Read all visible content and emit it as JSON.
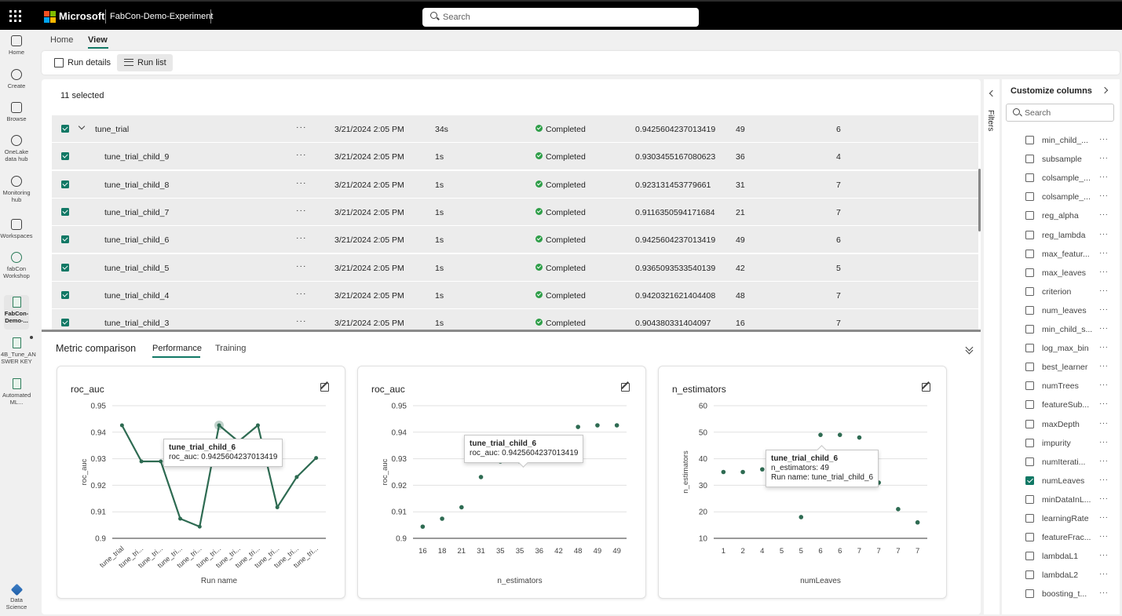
{
  "topbar": {
    "brand": "Microsoft",
    "app_name": "FabCon-Demo-Experiment",
    "search_placeholder": "Search"
  },
  "rail": [
    {
      "label": "Home",
      "icon": "home-icon"
    },
    {
      "label": "Create",
      "icon": "plus-circle-icon"
    },
    {
      "label": "Browse",
      "icon": "folder-icon"
    },
    {
      "label": "OneLake data hub",
      "icon": "onelake-icon"
    },
    {
      "label": "Monitoring hub",
      "icon": "monitor-icon"
    },
    {
      "label": "Workspaces",
      "icon": "workspaces-icon"
    },
    {
      "label": "fabCon Workshop",
      "icon": "workshop-icon"
    },
    {
      "label": "FabCon-Demo-...",
      "icon": "experiment-icon"
    },
    {
      "label": "4B_Tune_AN SWER KEY",
      "icon": "notebook-icon"
    },
    {
      "label": "Automated ML...",
      "icon": "notebook-icon"
    },
    {
      "label": "Data Science",
      "icon": "data-science-icon"
    }
  ],
  "nav": {
    "tabs": [
      "Home",
      "View"
    ],
    "active": "View"
  },
  "ribbon": {
    "run_details": "Run details",
    "run_list": "Run list"
  },
  "table": {
    "selected_label": "11 selected",
    "more": "···",
    "rows": [
      {
        "name": "tune_trial",
        "date": "3/21/2024 2:05 PM",
        "duration": "34s",
        "status": "Completed",
        "roc_auc": "0.9425604237013419",
        "n_estimators": "49",
        "num_leaves": "6",
        "parent": true
      },
      {
        "name": "tune_trial_child_9",
        "date": "3/21/2024 2:05 PM",
        "duration": "1s",
        "status": "Completed",
        "roc_auc": "0.9303455167080623",
        "n_estimators": "36",
        "num_leaves": "4"
      },
      {
        "name": "tune_trial_child_8",
        "date": "3/21/2024 2:05 PM",
        "duration": "1s",
        "status": "Completed",
        "roc_auc": "0.923131453779661",
        "n_estimators": "31",
        "num_leaves": "7"
      },
      {
        "name": "tune_trial_child_7",
        "date": "3/21/2024 2:05 PM",
        "duration": "1s",
        "status": "Completed",
        "roc_auc": "0.9116350594171684",
        "n_estimators": "21",
        "num_leaves": "7"
      },
      {
        "name": "tune_trial_child_6",
        "date": "3/21/2024 2:05 PM",
        "duration": "1s",
        "status": "Completed",
        "roc_auc": "0.9425604237013419",
        "n_estimators": "49",
        "num_leaves": "6"
      },
      {
        "name": "tune_trial_child_5",
        "date": "3/21/2024 2:05 PM",
        "duration": "1s",
        "status": "Completed",
        "roc_auc": "0.9365093533540139",
        "n_estimators": "42",
        "num_leaves": "5"
      },
      {
        "name": "tune_trial_child_4",
        "date": "3/21/2024 2:05 PM",
        "duration": "1s",
        "status": "Completed",
        "roc_auc": "0.9420321621404408",
        "n_estimators": "48",
        "num_leaves": "7"
      },
      {
        "name": "tune_trial_child_3",
        "date": "3/21/2024 2:05 PM",
        "duration": "1s",
        "status": "Completed",
        "roc_auc": "0.904380331404097",
        "n_estimators": "16",
        "num_leaves": "7"
      }
    ]
  },
  "metric": {
    "title": "Metric comparison",
    "tabs": [
      "Performance",
      "Training"
    ]
  },
  "chart_data": [
    {
      "type": "line",
      "title": "roc_auc",
      "xlabel": "Run name",
      "ylabel": "roc_auc",
      "ylim": [
        0.9,
        0.95
      ],
      "yticks": [
        0.9,
        0.91,
        0.92,
        0.93,
        0.94,
        0.95
      ],
      "categories": [
        "tune_trial",
        "tune_tri...",
        "tune_tri...",
        "tune_tri...",
        "tune_tri...",
        "tune_tri...",
        "tune_tri...",
        "tune_tri...",
        "tune_tri...",
        "tune_tri...",
        "tune_tri..."
      ],
      "values": [
        0.9426,
        0.929,
        0.929,
        0.9074,
        0.9044,
        0.9426,
        0.9365,
        0.9426,
        0.9117,
        0.9231,
        0.9303
      ],
      "color": "#2e6b52",
      "highlight_index": 5,
      "tooltip": {
        "title": "tune_trial_child_6",
        "lines": [
          "roc_auc: 0.9425604237013419"
        ]
      }
    },
    {
      "type": "scatter",
      "title": "roc_auc",
      "xlabel": "n_estimators",
      "ylabel": "roc_auc",
      "ylim": [
        0.9,
        0.95
      ],
      "yticks": [
        0.9,
        0.91,
        0.92,
        0.93,
        0.94,
        0.95
      ],
      "categories": [
        "16",
        "18",
        "21",
        "31",
        "35",
        "35",
        "36",
        "42",
        "48",
        "49",
        "49"
      ],
      "values": [
        0.9044,
        0.9074,
        0.9117,
        0.9231,
        0.929,
        0.929,
        0.9303,
        0.9365,
        0.942,
        0.9426,
        0.9426
      ],
      "color": "#2e6b52",
      "tooltip": {
        "title": "tune_trial_child_6",
        "lines": [
          "roc_auc: 0.9425604237013419"
        ]
      }
    },
    {
      "type": "scatter",
      "title": "n_estimators",
      "xlabel": "numLeaves",
      "ylabel": "n_estimators",
      "ylim": [
        10,
        60
      ],
      "yticks": [
        10,
        20,
        30,
        40,
        50,
        60
      ],
      "categories": [
        "1",
        "2",
        "4",
        "5",
        "5",
        "6",
        "6",
        "7",
        "7",
        "7",
        "7"
      ],
      "values": [
        35,
        35,
        36,
        35,
        18,
        49,
        49,
        48,
        31,
        21,
        16
      ],
      "color": "#2e6b52",
      "tooltip": {
        "title": "tune_trial_child_6",
        "lines": [
          "n_estimators: 49",
          "Run name: tune_trial_child_6"
        ]
      }
    }
  ],
  "filters_label": "Filters",
  "customize": {
    "title": "Customize columns",
    "search_placeholder": "Search",
    "columns": [
      {
        "label": "min_child_...",
        "checked": false
      },
      {
        "label": "subsample",
        "checked": false
      },
      {
        "label": "colsample_...",
        "checked": false
      },
      {
        "label": "colsample_...",
        "checked": false
      },
      {
        "label": "reg_alpha",
        "checked": false
      },
      {
        "label": "reg_lambda",
        "checked": false
      },
      {
        "label": "max_featur...",
        "checked": false
      },
      {
        "label": "max_leaves",
        "checked": false
      },
      {
        "label": "criterion",
        "checked": false
      },
      {
        "label": "num_leaves",
        "checked": false
      },
      {
        "label": "min_child_s...",
        "checked": false
      },
      {
        "label": "log_max_bin",
        "checked": false
      },
      {
        "label": "best_learner",
        "checked": false
      },
      {
        "label": "numTrees",
        "checked": false
      },
      {
        "label": "featureSub...",
        "checked": false
      },
      {
        "label": "maxDepth",
        "checked": false
      },
      {
        "label": "impurity",
        "checked": false
      },
      {
        "label": "numIterati...",
        "checked": false
      },
      {
        "label": "numLeaves",
        "checked": true
      },
      {
        "label": "minDataInL...",
        "checked": false
      },
      {
        "label": "learningRate",
        "checked": false
      },
      {
        "label": "featureFrac...",
        "checked": false
      },
      {
        "label": "lambdaL1",
        "checked": false
      },
      {
        "label": "lambdaL2",
        "checked": false
      },
      {
        "label": "boosting_t...",
        "checked": false
      }
    ]
  }
}
